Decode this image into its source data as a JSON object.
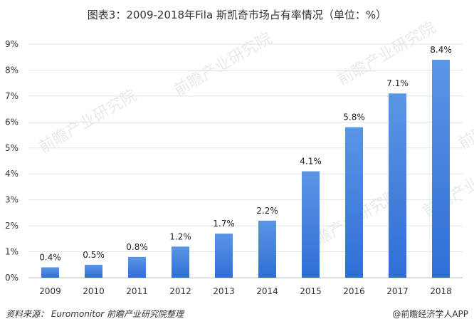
{
  "chart_data": {
    "type": "bar",
    "title": "图表3：2009-2018年Fila 斯凯奇市场占有率情况（单位：%）",
    "xlabel": "",
    "ylabel": "",
    "categories": [
      "2009",
      "2010",
      "2011",
      "2012",
      "2013",
      "2014",
      "2015",
      "2016",
      "2017",
      "2018"
    ],
    "values": [
      0.4,
      0.5,
      0.8,
      1.2,
      1.7,
      2.2,
      4.1,
      5.8,
      7.1,
      8.4
    ],
    "value_labels": [
      "0.4%",
      "0.5%",
      "0.8%",
      "1.2%",
      "1.7%",
      "2.2%",
      "4.1%",
      "5.8%",
      "7.1%",
      "8.4%"
    ],
    "ylim": [
      0,
      9
    ],
    "yticks": [
      "0%",
      "1%",
      "2%",
      "3%",
      "4%",
      "5%",
      "6%",
      "7%",
      "8%",
      "9%"
    ],
    "grid": true,
    "legend": "none",
    "bar_color_top": "#5b95e6",
    "bar_color_bottom": "#2f6fd6"
  },
  "footer": {
    "source": "资料来源：  Euromonitor 前瞻产业研究院整理",
    "brand": "@前瞻经济学人APP"
  },
  "watermark": {
    "text": "前瞻产业研究院"
  }
}
